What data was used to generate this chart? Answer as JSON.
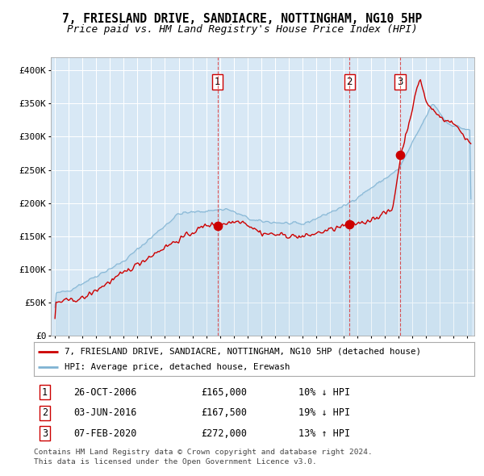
{
  "title": "7, FRIESLAND DRIVE, SANDIACRE, NOTTINGHAM, NG10 5HP",
  "subtitle": "Price paid vs. HM Land Registry's House Price Index (HPI)",
  "legend_property": "7, FRIESLAND DRIVE, SANDIACRE, NOTTINGHAM, NG10 5HP (detached house)",
  "legend_hpi": "HPI: Average price, detached house, Erewash",
  "footnote_line1": "Contains HM Land Registry data © Crown copyright and database right 2024.",
  "footnote_line2": "This data is licensed under the Open Government Licence v3.0.",
  "transactions": [
    {
      "num": 1,
      "date": "26-OCT-2006",
      "price": "£165,000",
      "rel": "10% ↓ HPI",
      "year": 2006.82,
      "price_val": 165000
    },
    {
      "num": 2,
      "date": "03-JUN-2016",
      "price": "£167,500",
      "rel": "19% ↓ HPI",
      "year": 2016.42,
      "price_val": 167500
    },
    {
      "num": 3,
      "date": "07-FEB-2020",
      "price": "£272,000",
      "rel": "13% ↑ HPI",
      "year": 2020.1,
      "price_val": 272000
    }
  ],
  "ylim": [
    0,
    420000
  ],
  "xlim_start": 1994.7,
  "xlim_end": 2025.5,
  "background_color": "#d8e8f5",
  "line_color_property": "#cc0000",
  "line_color_hpi": "#7fb3d3",
  "marker_color": "#cc0000",
  "dashed_line_color": "#dd2222",
  "grid_color": "#ffffff",
  "title_fontsize": 10.5,
  "subtitle_fontsize": 9.5,
  "yticks": [
    0,
    50000,
    100000,
    150000,
    200000,
    250000,
    300000,
    350000,
    400000
  ],
  "ytick_labels": [
    "£0",
    "£50K",
    "£100K",
    "£150K",
    "£200K",
    "£250K",
    "£300K",
    "£350K",
    "£400K"
  ]
}
